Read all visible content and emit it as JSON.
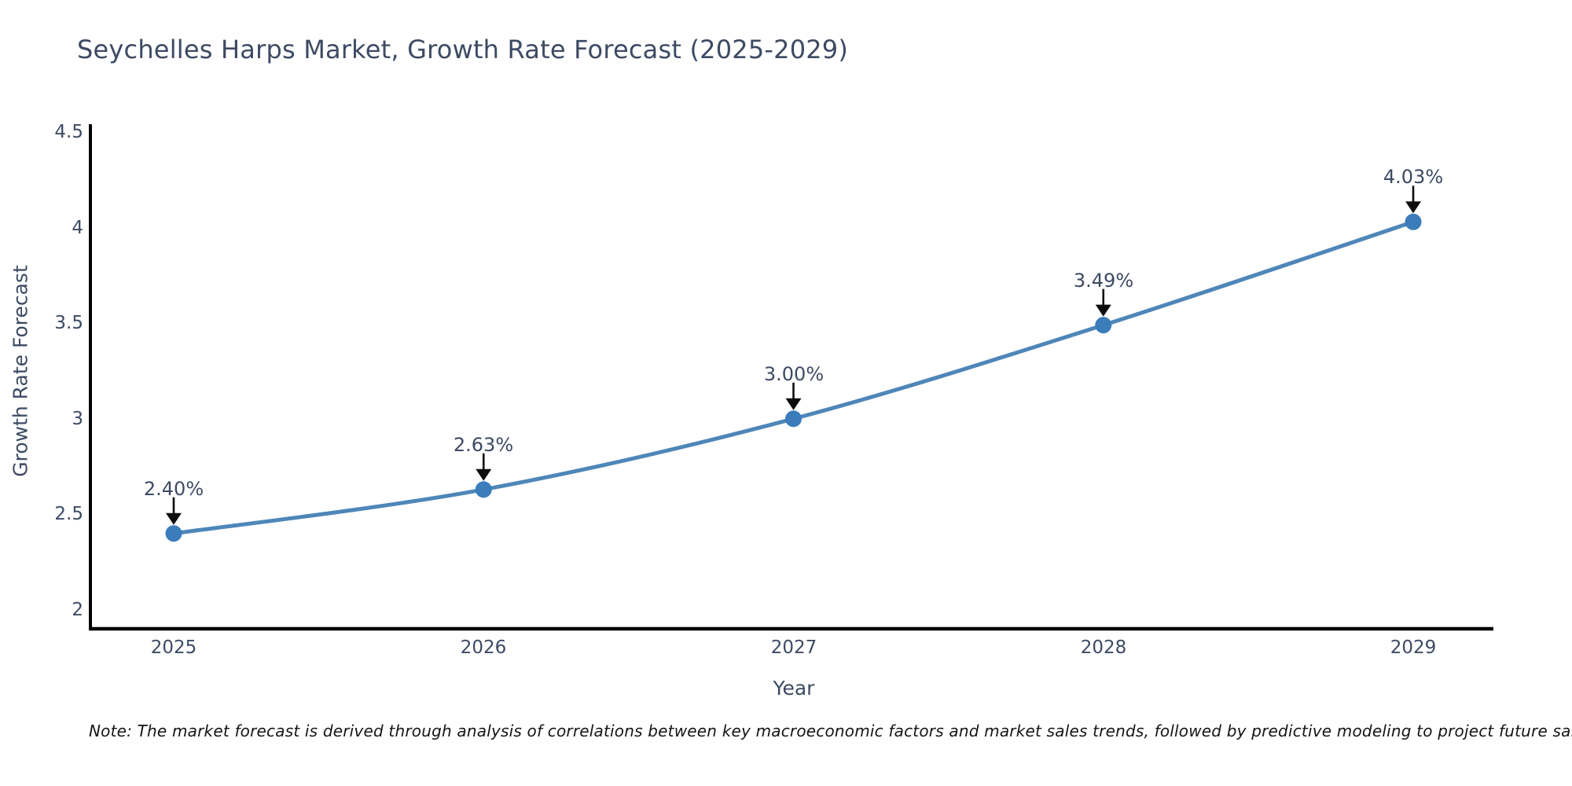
{
  "page": {
    "background": "#ffffff"
  },
  "chart_data": {
    "type": "line",
    "title": "Seychelles Harps Market, Growth Rate Forecast (2025-2029)",
    "xlabel": "Year",
    "ylabel": "Growth Rate Forecast",
    "x": [
      2025,
      2026,
      2027,
      2028,
      2029
    ],
    "values": [
      2.4,
      2.63,
      3.0,
      3.49,
      4.03
    ],
    "point_labels": [
      "2.40%",
      "2.63%",
      "3.00%",
      "3.49%",
      "4.03%"
    ],
    "x_tick_labels": [
      "2025",
      "2026",
      "2027",
      "2028",
      "2029"
    ],
    "y_tick_labels": [
      "4.5",
      "4",
      "3.5",
      "3",
      "2.5",
      "2"
    ],
    "y_ticks": [
      4.5,
      4,
      3.5,
      3,
      2.5,
      2
    ],
    "ylim": [
      2,
      4.5
    ],
    "grid": false,
    "legend": "none",
    "line_color": "#4e86b8",
    "marker_color": "#3b7cba",
    "annotation_arrow_color": "#0d0d0d",
    "axis_color": "#000000",
    "text_color": "#3d4a63"
  },
  "note": {
    "text": "Note: The market forecast is derived through analysis of correlations between key macroeconomic factors and market sales trends, followed by predictive modeling to project future sales"
  }
}
